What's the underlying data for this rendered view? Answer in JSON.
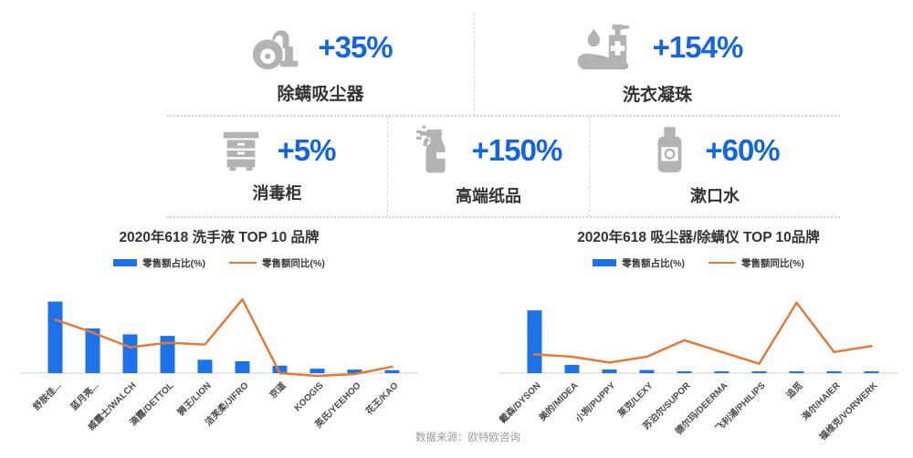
{
  "colors": {
    "accent_blue": "#1565DE",
    "bar_blue": "#1E72E8",
    "line_orange": "#E07B3B",
    "icon_gray": "#B3B3B3",
    "axis_gray": "#E0E0E0"
  },
  "stats": {
    "row1": [
      {
        "icon": "vacuum-cleaner-icon",
        "value": "+35%",
        "label": "除螨吸尘器"
      },
      {
        "icon": "hand-sanitizer-icon",
        "value": "+154%",
        "label": "洗衣凝珠"
      }
    ],
    "row2": [
      {
        "icon": "disinfection-cabinet-icon",
        "value": "+5%",
        "label": "消毒柜"
      },
      {
        "icon": "spray-bottle-icon",
        "value": "+150%",
        "label": "高端纸品"
      },
      {
        "icon": "mouthwash-bottle-icon",
        "value": "+60%",
        "label": "漱口水"
      }
    ]
  },
  "chart_data": [
    {
      "type": "bar+line",
      "title": "2020年618 洗手液 TOP 10 品牌",
      "legend": {
        "bar": "零售额占比(%)",
        "line": "零售额同比(%)"
      },
      "categories": [
        "舒肤佳...",
        "蓝月亮...",
        "威露士/WALCH",
        "滴露/DETTOL",
        "狮王/LION",
        "洁芙柔/JIFRO",
        "京道",
        "KOOGIS",
        "英氏/YEEHOO",
        "花王/KAO"
      ],
      "series": [
        {
          "name": "零售额占比(%)",
          "type": "bar",
          "values": [
            24,
            15,
            13,
            12.5,
            4.5,
            4,
            2.5,
            1.5,
            1.2,
            1
          ],
          "axis": {
            "min": 0,
            "max": 26
          }
        },
        {
          "name": "零售额同比(%)",
          "type": "line",
          "values": [
            290,
            220,
            140,
            165,
            155,
            400,
            0,
            -15,
            -5,
            35
          ],
          "axis": {
            "min": 0,
            "max": 420
          }
        }
      ],
      "layout": {
        "grid": false,
        "legend_position": "top-center",
        "x_label_rotation": -45,
        "y_axis_visible": false
      }
    },
    {
      "type": "bar+line",
      "title": "2020年618 吸尘器/除螨仪 TOP 10品牌",
      "legend": {
        "bar": "零售额占比(%)",
        "line": "零售额同比(%)"
      },
      "categories": [
        "戴森/DYSON",
        "美的/MIDEA",
        "小狗/PUPPY",
        "莱克/LEXY",
        "苏泊尔/SUPOR",
        "德尔玛/DEERMA",
        "飞利浦/PHILIPS",
        "追觅",
        "海尔/HAIER",
        "福维克/VORWERK"
      ],
      "series": [
        {
          "name": "零售额占比(%)",
          "type": "bar",
          "values": [
            34,
            4.5,
            2,
            1.7,
            1,
            1,
            1,
            1,
            1,
            1
          ],
          "axis": {
            "min": 0,
            "max": 42
          }
        },
        {
          "name": "零售额同比(%)",
          "type": "line",
          "values": [
            80,
            70,
            45,
            70,
            140,
            90,
            40,
            300,
            90,
            115
          ],
          "axis": {
            "min": 0,
            "max": 330
          }
        }
      ],
      "layout": {
        "grid": false,
        "legend_position": "top-center",
        "x_label_rotation": -45,
        "y_axis_visible": false
      }
    }
  ],
  "source": "数据来源：欧特欧咨询"
}
